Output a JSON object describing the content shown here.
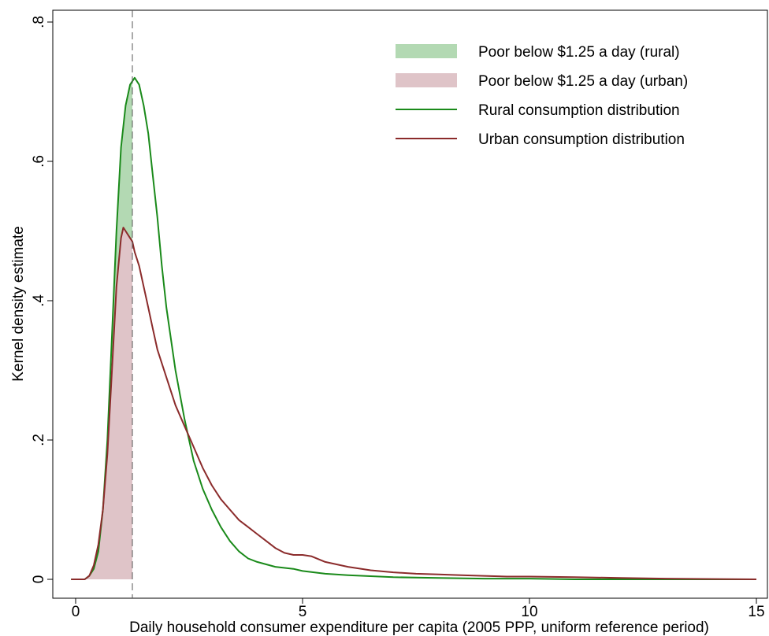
{
  "chart_data": {
    "type": "area",
    "title": "",
    "xlabel": "Daily household consumer expenditure per capita (2005 PPP, uniform reference period)",
    "ylabel": "Kernel density estimate",
    "xlim": [
      -0.15,
      15.2
    ],
    "ylim": [
      0,
      0.81
    ],
    "xticks": [
      0,
      5,
      10,
      15
    ],
    "xtick_labels": [
      "0",
      "5",
      "10",
      "15"
    ],
    "yticks": [
      0,
      0.2,
      0.4,
      0.6,
      0.8
    ],
    "ytick_labels": [
      "0",
      ".2",
      ".4",
      ".6",
      ".8"
    ],
    "grid": false,
    "legend_position": "top-right",
    "poverty_line": 1.25,
    "legend": [
      {
        "label": "Poor below $1.25 a day (rural)",
        "kind": "area",
        "color": "#b3d9b3"
      },
      {
        "label": "Poor below $1.25 a day (urban)",
        "kind": "area",
        "color": "#dfc4c8"
      },
      {
        "label": "Rural consumption distribution",
        "kind": "line",
        "color": "#1a8a1a"
      },
      {
        "label": "Urban consumption distribution",
        "kind": "line",
        "color": "#8b2b2b"
      }
    ],
    "series": [
      {
        "name": "Rural consumption distribution",
        "color": "#1a8a1a",
        "fill_color": "#b3d9b3",
        "x": [
          -0.1,
          0.2,
          0.3,
          0.4,
          0.5,
          0.6,
          0.7,
          0.8,
          0.9,
          1.0,
          1.1,
          1.2,
          1.25,
          1.3,
          1.4,
          1.5,
          1.6,
          1.7,
          1.8,
          1.9,
          2.0,
          2.2,
          2.4,
          2.6,
          2.8,
          3.0,
          3.2,
          3.4,
          3.6,
          3.8,
          4.0,
          4.4,
          4.8,
          5.0,
          5.5,
          6.0,
          7.0,
          8.0,
          9.0,
          10.0,
          11.0,
          12.5,
          15.0
        ],
        "y": [
          0.0,
          0.0,
          0.005,
          0.015,
          0.04,
          0.1,
          0.2,
          0.35,
          0.5,
          0.62,
          0.68,
          0.71,
          0.715,
          0.72,
          0.71,
          0.68,
          0.64,
          0.58,
          0.52,
          0.45,
          0.39,
          0.3,
          0.23,
          0.17,
          0.13,
          0.1,
          0.075,
          0.055,
          0.04,
          0.03,
          0.025,
          0.018,
          0.015,
          0.012,
          0.008,
          0.006,
          0.003,
          0.002,
          0.001,
          0.001,
          0.0,
          0.0,
          0.0
        ]
      },
      {
        "name": "Urban consumption distribution",
        "color": "#8b2b2b",
        "fill_color": "#dfc4c8",
        "x": [
          -0.1,
          0.2,
          0.3,
          0.4,
          0.5,
          0.6,
          0.7,
          0.8,
          0.9,
          1.0,
          1.05,
          1.1,
          1.2,
          1.25,
          1.3,
          1.4,
          1.5,
          1.6,
          1.7,
          1.8,
          1.9,
          2.0,
          2.2,
          2.4,
          2.6,
          2.8,
          3.0,
          3.2,
          3.4,
          3.6,
          3.8,
          4.0,
          4.2,
          4.4,
          4.6,
          4.8,
          5.0,
          5.2,
          5.5,
          6.0,
          6.5,
          7.0,
          7.5,
          8.0,
          8.5,
          9.0,
          9.5,
          10.0,
          11.0,
          12.0,
          13.0,
          15.0
        ],
        "y": [
          0.0,
          0.0,
          0.005,
          0.02,
          0.05,
          0.1,
          0.18,
          0.3,
          0.42,
          0.49,
          0.505,
          0.5,
          0.49,
          0.485,
          0.47,
          0.45,
          0.42,
          0.39,
          0.36,
          0.33,
          0.31,
          0.29,
          0.25,
          0.22,
          0.19,
          0.16,
          0.135,
          0.115,
          0.1,
          0.085,
          0.075,
          0.065,
          0.055,
          0.045,
          0.038,
          0.035,
          0.035,
          0.033,
          0.025,
          0.018,
          0.013,
          0.01,
          0.008,
          0.007,
          0.006,
          0.005,
          0.004,
          0.004,
          0.003,
          0.002,
          0.001,
          0.0
        ]
      }
    ]
  }
}
